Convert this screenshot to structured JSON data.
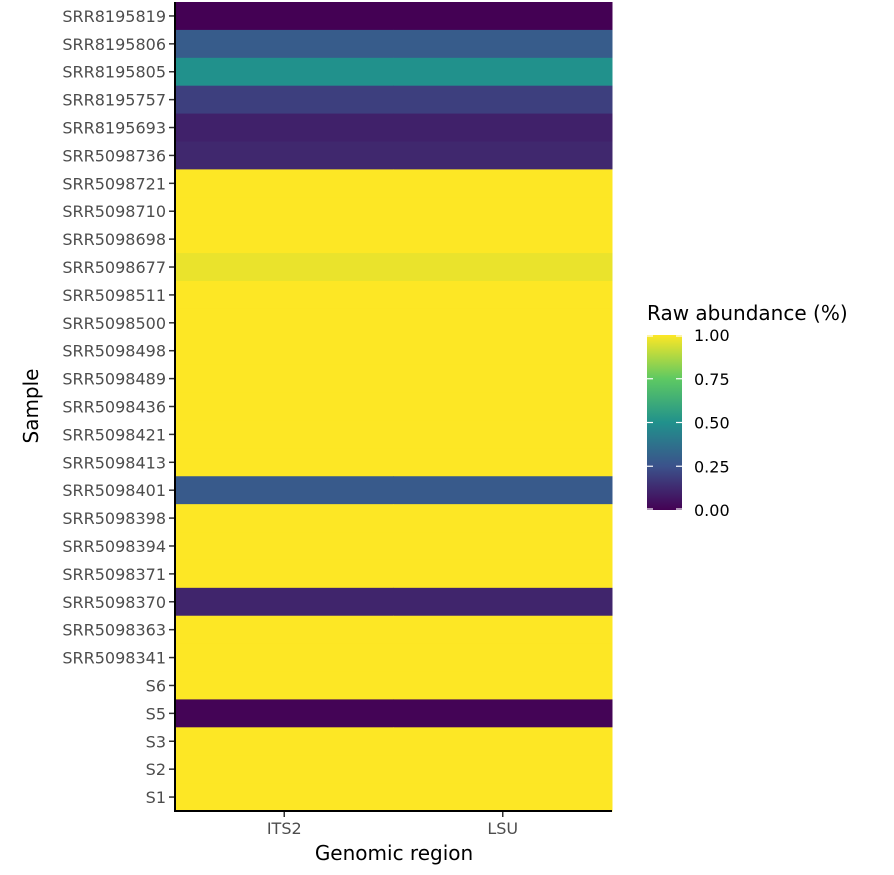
{
  "chart_data": {
    "type": "heatmap",
    "title": "",
    "xlabel": "Genomic region",
    "ylabel": "Sample",
    "x_categories": [
      "ITS2",
      "LSU"
    ],
    "y_categories": [
      "SRR8195819",
      "SRR8195806",
      "SRR8195805",
      "SRR8195757",
      "SRR8195693",
      "SRR5098736",
      "SRR5098721",
      "SRR5098710",
      "SRR5098698",
      "SRR5098677",
      "SRR5098511",
      "SRR5098500",
      "SRR5098498",
      "SRR5098489",
      "SRR5098436",
      "SRR5098421",
      "SRR5098413",
      "SRR5098401",
      "SRR5098398",
      "SRR5098394",
      "SRR5098371",
      "SRR5098370",
      "SRR5098363",
      "SRR5098341",
      "S6",
      "S5",
      "S3",
      "S2",
      "S1"
    ],
    "values": [
      [
        0.0,
        0.0
      ],
      [
        0.29,
        0.29
      ],
      [
        0.5,
        0.5
      ],
      [
        0.19,
        0.19
      ],
      [
        0.1,
        0.1
      ],
      [
        0.12,
        0.12
      ],
      [
        1.0,
        1.0
      ],
      [
        1.0,
        1.0
      ],
      [
        1.0,
        1.0
      ],
      [
        0.97,
        0.97
      ],
      [
        1.0,
        1.0
      ],
      [
        1.0,
        1.0
      ],
      [
        1.0,
        1.0
      ],
      [
        1.0,
        1.0
      ],
      [
        1.0,
        1.0
      ],
      [
        1.0,
        1.0
      ],
      [
        1.0,
        1.0
      ],
      [
        0.28,
        0.28
      ],
      [
        1.0,
        1.0
      ],
      [
        1.0,
        1.0
      ],
      [
        1.0,
        1.0
      ],
      [
        0.11,
        0.11
      ],
      [
        1.0,
        1.0
      ],
      [
        1.0,
        1.0
      ],
      [
        1.0,
        1.0
      ],
      [
        0.01,
        0.01
      ],
      [
        1.0,
        1.0
      ],
      [
        1.0,
        1.0
      ],
      [
        1.0,
        1.0
      ]
    ],
    "color_scale": {
      "name": "viridis",
      "range": [
        0,
        1
      ],
      "stops": [
        "#440154",
        "#3b528b",
        "#21918c",
        "#5ec962",
        "#fde725"
      ]
    },
    "legend": {
      "title": "Raw abundance (%)",
      "ticks": [
        {
          "value": 1.0,
          "label": "1.00"
        },
        {
          "value": 0.75,
          "label": "0.75"
        },
        {
          "value": 0.5,
          "label": "0.50"
        },
        {
          "value": 0.25,
          "label": "0.25"
        },
        {
          "value": 0.0,
          "label": "0.00"
        }
      ],
      "placement": "right"
    },
    "grid": false
  }
}
